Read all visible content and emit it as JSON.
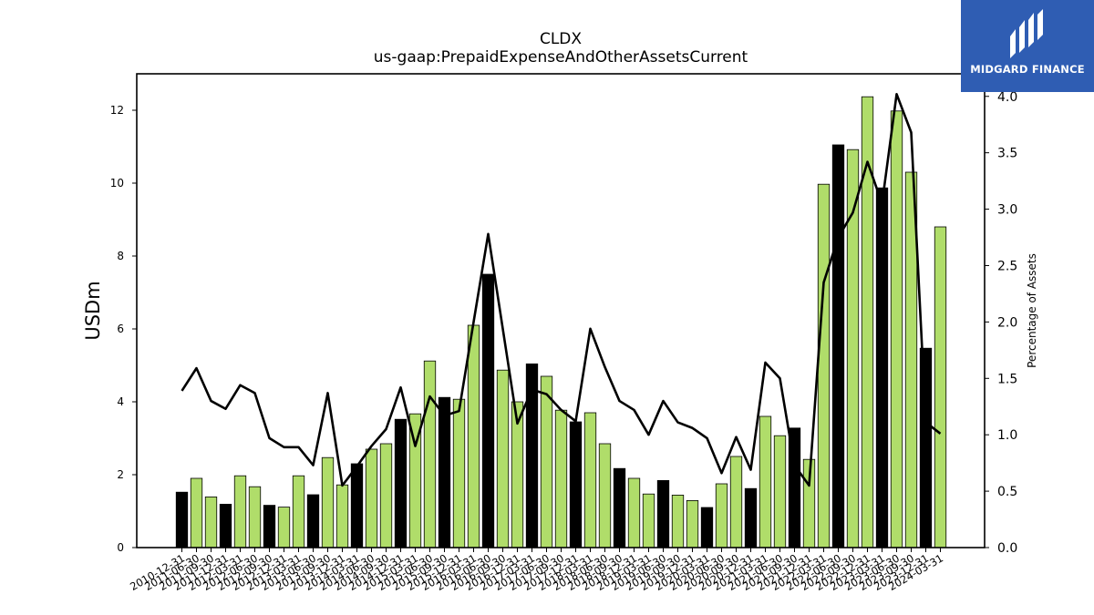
{
  "logo": {
    "text": "MIDGARD FINANCE"
  },
  "chart_data": {
    "type": "bar",
    "title": "CLDX",
    "subtitle": "us-gaap:PrepaidExpenseAndOtherAssetsCurrent",
    "ylabel": "USDm",
    "y2label": "Percentage of Assets",
    "ylim": [
      0,
      13
    ],
    "y2lim": [
      0,
      4.2
    ],
    "yticks": [
      0,
      2,
      4,
      6,
      8,
      10,
      12
    ],
    "y2ticks": [
      0.0,
      0.5,
      1.0,
      1.5,
      2.0,
      2.5,
      3.0,
      3.5,
      4.0
    ],
    "y2tick_labels": [
      "0.0",
      "0.5",
      "1.0",
      "1.5",
      "2.0",
      "2.5",
      "3.0",
      "3.5",
      "4.0"
    ],
    "colors": {
      "bar": "#b0dd6a",
      "bar_annual": "#000000",
      "line": "#000000"
    },
    "categories": [
      "2010-12-31",
      "2011-06-30",
      "2011-09-30",
      "2011-12-31",
      "2012-03-31",
      "2012-06-30",
      "2012-09-30",
      "2012-12-31",
      "2013-03-31",
      "2013-06-30",
      "2013-09-30",
      "2013-12-31",
      "2014-03-31",
      "2014-06-30",
      "2014-09-30",
      "2014-12-31",
      "2015-03-31",
      "2015-06-30",
      "2015-09-30",
      "2015-12-31",
      "2016-03-31",
      "2016-06-30",
      "2016-09-30",
      "2016-12-31",
      "2017-03-31",
      "2017-06-30",
      "2017-09-30",
      "2017-12-31",
      "2018-03-31",
      "2018-06-30",
      "2018-09-30",
      "2018-12-31",
      "2019-03-31",
      "2019-06-30",
      "2019-09-30",
      "2019-12-31",
      "2020-03-31",
      "2020-06-30",
      "2020-09-30",
      "2020-12-31",
      "2021-03-31",
      "2021-06-30",
      "2021-09-30",
      "2021-12-31",
      "2022-03-31",
      "2022-06-30",
      "2022-09-30",
      "2022-12-31",
      "2023-03-31",
      "2023-06-30",
      "2023-09-30",
      "2023-12-31",
      "2024-03-31"
    ],
    "annual": [
      true,
      false,
      false,
      true,
      false,
      false,
      true,
      false,
      false,
      true,
      false,
      false,
      true,
      false,
      false,
      true,
      false,
      false,
      true,
      false,
      false,
      true,
      false,
      false,
      true,
      false,
      false,
      true,
      false,
      false,
      true,
      false,
      false,
      true,
      false,
      false,
      true,
      false,
      false,
      true,
      false,
      false,
      true,
      false,
      false,
      true,
      false,
      false,
      true,
      false,
      false,
      true,
      false
    ],
    "series": [
      {
        "name": "USDm",
        "kind": "bar",
        "axis": "left",
        "values": [
          1.52,
          1.9,
          1.39,
          1.19,
          1.97,
          1.67,
          1.16,
          1.11,
          1.97,
          1.45,
          2.47,
          1.72,
          2.3,
          2.7,
          2.85,
          3.52,
          3.67,
          5.12,
          4.12,
          4.07,
          6.1,
          7.5,
          4.87,
          4.0,
          5.04,
          4.7,
          3.77,
          3.45,
          3.7,
          2.85,
          2.17,
          1.9,
          1.47,
          1.84,
          1.44,
          1.29,
          1.1,
          1.75,
          2.5,
          1.62,
          3.6,
          3.07,
          3.28,
          2.42,
          9.97,
          11.05,
          10.92,
          12.37,
          9.87,
          11.98,
          10.3,
          5.47,
          8.8
        ]
      },
      {
        "name": "Percentage of Assets",
        "kind": "line",
        "axis": "right",
        "values": [
          1.39,
          1.59,
          1.3,
          1.23,
          1.44,
          1.37,
          0.97,
          0.89,
          0.89,
          0.73,
          1.37,
          0.55,
          0.72,
          0.9,
          1.05,
          1.42,
          0.9,
          1.34,
          1.17,
          1.21,
          2.0,
          2.78,
          1.94,
          1.1,
          1.4,
          1.36,
          1.22,
          1.12,
          1.94,
          1.6,
          1.3,
          1.22,
          1.0,
          1.3,
          1.11,
          1.06,
          0.97,
          0.66,
          0.98,
          0.69,
          1.64,
          1.5,
          0.73,
          0.55,
          2.35,
          2.75,
          2.97,
          3.42,
          3.05,
          4.02,
          3.68,
          1.11,
          1.01
        ]
      }
    ],
    "grid": false,
    "legend": "none"
  }
}
